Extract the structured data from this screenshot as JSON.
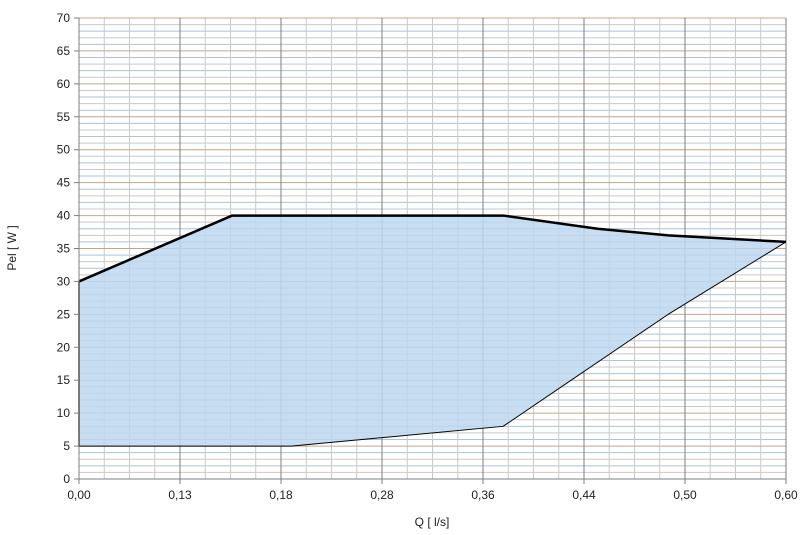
{
  "chart_data": {
    "type": "area",
    "xlabel": "Q [ l/s]",
    "ylabel": "Pel [ W ]",
    "x_ticks": [
      "0,00",
      "0,13",
      "0,18",
      "0,28",
      "0,36",
      "0,44",
      "0,50",
      "0,60"
    ],
    "y_ticks": [
      "0",
      "5",
      "10",
      "15",
      "20",
      "25",
      "30",
      "35",
      "40",
      "45",
      "50",
      "55",
      "60",
      "65",
      "70"
    ],
    "ylim": [
      0,
      70
    ],
    "xlim": [
      0,
      0.6
    ],
    "grid": true,
    "series": [
      {
        "role": "upper_boundary",
        "x": [
          0.0,
          0.13,
          0.36,
          0.44,
          0.5,
          0.6
        ],
        "y": [
          30,
          40,
          40,
          38,
          37,
          36
        ]
      },
      {
        "role": "lower_boundary",
        "x": [
          0.0,
          0.18,
          0.36,
          0.5,
          0.6
        ],
        "y": [
          5,
          5,
          8,
          25,
          36
        ]
      }
    ],
    "colors": {
      "fill": "#bdd7ee",
      "upper_line": "#000000",
      "lower_line": "#000000",
      "major_grid": "#7f7f7f",
      "minor_grid": "#c9c9c9",
      "minor_grid_colored": "#a9c4dd",
      "major_grid_h": "#c8a48a"
    }
  }
}
